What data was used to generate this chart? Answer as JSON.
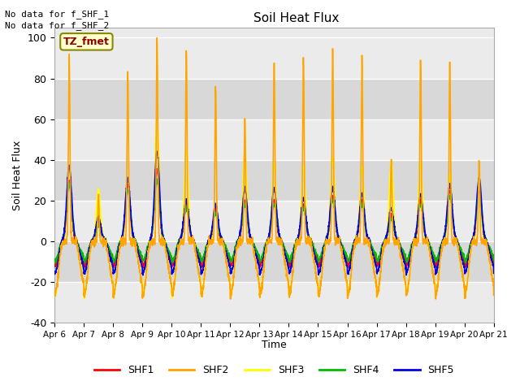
{
  "title": "Soil Heat Flux",
  "ylabel": "Soil Heat Flux",
  "xlabel": "Time",
  "ylim": [
    -40,
    105
  ],
  "xlim": [
    0,
    15
  ],
  "legend_labels": [
    "SHF1",
    "SHF2",
    "SHF3",
    "SHF4",
    "SHF5"
  ],
  "legend_colors": [
    "#ff0000",
    "#ffa500",
    "#ffff00",
    "#00bb00",
    "#0000ee"
  ],
  "no_data_text": [
    "No data for f_SHF_1",
    "No data for f_SHF_2"
  ],
  "tz_label": "TZ_fmet",
  "xtick_labels": [
    "Apr 6",
    "Apr 7",
    "Apr 8",
    "Apr 9",
    "Apr 10",
    "Apr 11",
    "Apr 12",
    "Apr 13",
    "Apr 14",
    "Apr 15",
    "Apr 16",
    "Apr 17",
    "Apr 18",
    "Apr 19",
    "Apr 20",
    "Apr 21"
  ],
  "ytick_values": [
    -40,
    -20,
    0,
    20,
    40,
    60,
    80,
    100
  ],
  "grid_color": "#ffffff",
  "bg_color_light": "#ebebeb",
  "bg_color_dark": "#d8d8d8",
  "line_width": 1.2,
  "figsize": [
    6.4,
    4.8
  ],
  "dpi": 100,
  "shf2_day_amps": [
    90,
    22,
    83,
    100,
    95,
    76,
    62,
    88,
    90,
    94,
    90,
    41,
    90,
    88,
    41
  ],
  "shf3_day_amps": [
    35,
    25,
    30,
    60,
    45,
    15,
    43,
    38,
    36,
    41,
    36,
    39,
    38,
    32,
    30
  ],
  "shf1_day_amps": [
    30,
    10,
    28,
    35,
    18,
    16,
    20,
    20,
    18,
    22,
    20,
    13,
    20,
    25,
    28
  ],
  "shf4_day_amps": [
    28,
    8,
    25,
    30,
    16,
    14,
    18,
    18,
    16,
    20,
    18,
    11,
    18,
    22,
    25
  ],
  "shf5_day_amps": [
    37,
    12,
    31,
    44,
    20,
    18,
    26,
    26,
    21,
    26,
    23,
    16,
    23,
    28,
    31
  ],
  "shf2_night_base": -22,
  "shf3_night_base": -22,
  "shf1_night_base": -10,
  "shf4_night_base": -8,
  "shf5_night_base": -13
}
